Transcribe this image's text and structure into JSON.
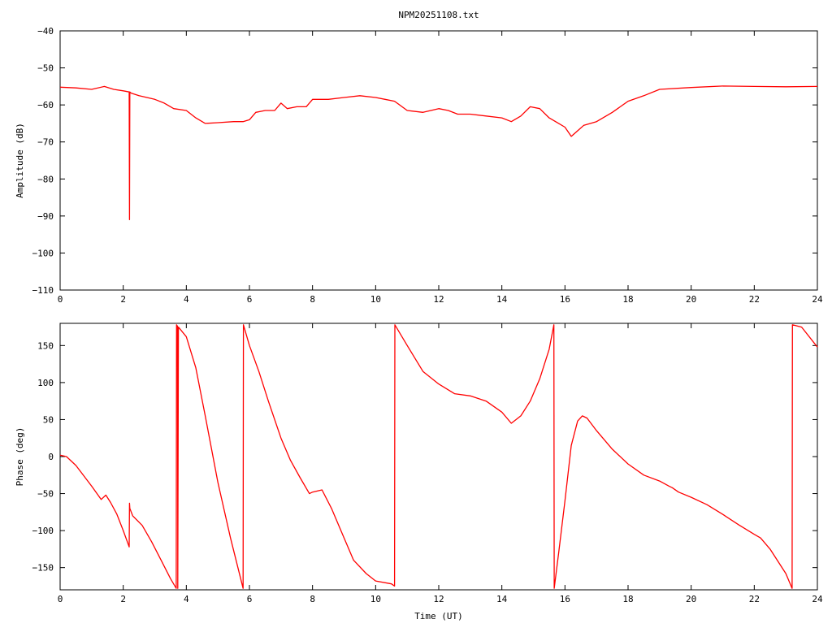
{
  "chart_data": [
    {
      "type": "line",
      "title": "NPM20251108.txt",
      "xlabel": "",
      "ylabel": "Amplitude (dB)",
      "xlim": [
        0,
        24
      ],
      "ylim": [
        -110,
        -40
      ],
      "xticks": [
        0,
        2,
        4,
        6,
        8,
        10,
        12,
        14,
        16,
        18,
        20,
        22,
        24
      ],
      "yticks": [
        -40,
        -50,
        -60,
        -70,
        -80,
        -90,
        -100,
        -110
      ],
      "grid": false,
      "color": "#ff0000",
      "series": [
        {
          "x": [
            0,
            0.5,
            1.0,
            1.4,
            1.7,
            2.0,
            2.19,
            2.2,
            2.21,
            2.25,
            2.5,
            3.0,
            3.3,
            3.6,
            4.0,
            4.3,
            4.6,
            5.0,
            5.5,
            5.8,
            6.0,
            6.2,
            6.5,
            6.8,
            7.0,
            7.2,
            7.5,
            7.8,
            8.0,
            8.5,
            9.0,
            9.5,
            10.0,
            10.3,
            10.6,
            11.0,
            11.5,
            12.0,
            12.3,
            12.6,
            13.0,
            13.5,
            14.0,
            14.3,
            14.6,
            14.9,
            15.2,
            15.5,
            15.8,
            16.0,
            16.2,
            16.4,
            16.6,
            17.0,
            17.5,
            18.0,
            18.5,
            19.0,
            20.0,
            21.0,
            22.0,
            23.0,
            24.0
          ],
          "y": [
            -55.2,
            -55.4,
            -55.8,
            -55.0,
            -55.8,
            -56.2,
            -56.5,
            -91.0,
            -56.5,
            -56.8,
            -57.5,
            -58.5,
            -59.5,
            -61.0,
            -61.5,
            -63.5,
            -65.0,
            -64.8,
            -64.5,
            -64.5,
            -64.0,
            -62.0,
            -61.5,
            -61.5,
            -59.5,
            -61.0,
            -60.5,
            -60.5,
            -58.5,
            -58.5,
            -58.0,
            -57.5,
            -58.0,
            -58.5,
            -59.0,
            -61.5,
            -62.0,
            -61.0,
            -61.5,
            -62.5,
            -62.5,
            -63.0,
            -63.5,
            -64.5,
            -63.0,
            -60.5,
            -61.0,
            -63.5,
            -65.0,
            -66.0,
            -68.5,
            -67.0,
            -65.5,
            -64.5,
            -62.0,
            -59.0,
            -57.5,
            -55.8,
            -55.3,
            -54.9,
            -55.0,
            -55.1,
            -55.0
          ]
        }
      ]
    },
    {
      "type": "line",
      "title": "",
      "xlabel": "Time (UT)",
      "ylabel": "Phase (deg)",
      "xlim": [
        0,
        24
      ],
      "ylim": [
        -180,
        180
      ],
      "xticks": [
        0,
        2,
        4,
        6,
        8,
        10,
        12,
        14,
        16,
        18,
        20,
        22,
        24
      ],
      "yticks": [
        150,
        100,
        50,
        0,
        -50,
        -100,
        -150
      ],
      "grid": false,
      "color": "#ff0000",
      "series": [
        {
          "x": [
            0,
            0.2,
            0.5,
            1.0,
            1.3,
            1.45,
            1.6,
            1.8,
            2.0,
            2.19,
            2.2,
            2.21,
            2.3,
            2.6,
            2.9,
            3.2,
            3.5,
            3.68,
            3.69,
            3.72,
            3.73,
            3.75,
            4.0,
            4.3,
            4.6,
            5.0,
            5.4,
            5.8,
            5.81,
            6.0,
            6.3,
            6.6,
            7.0,
            7.3,
            7.6,
            7.9,
            8.0,
            8.3,
            8.6,
            9.0,
            9.3,
            9.7,
            10.0,
            10.5,
            10.6,
            10.61,
            11.0,
            11.5,
            12.0,
            12.5,
            13.0,
            13.5,
            14.0,
            14.3,
            14.6,
            14.9,
            15.2,
            15.5,
            15.65,
            15.66,
            15.8,
            16.0,
            16.2,
            16.4,
            16.55,
            16.7,
            17.0,
            17.5,
            18.0,
            18.5,
            19.0,
            19.3,
            19.4,
            19.6,
            20.0,
            20.5,
            21.0,
            21.5,
            22.0,
            22.2,
            22.5,
            23.0,
            23.2,
            23.21,
            23.5,
            24.0
          ],
          "y": [
            2,
            0,
            -12,
            -40,
            -58,
            -52,
            -62,
            -78,
            -100,
            -122,
            -63,
            -70,
            -80,
            -93,
            -115,
            -140,
            -165,
            -178,
            178,
            176,
            -178,
            175,
            162,
            120,
            55,
            -35,
            -110,
            -178,
            178,
            150,
            115,
            75,
            25,
            -5,
            -28,
            -50,
            -48,
            -45,
            -70,
            -110,
            -140,
            -158,
            -168,
            -172,
            -175,
            178,
            150,
            115,
            98,
            85,
            82,
            75,
            60,
            45,
            55,
            75,
            105,
            145,
            178,
            -178,
            -130,
            -60,
            15,
            48,
            55,
            52,
            35,
            10,
            -10,
            -25,
            -33,
            -40,
            -42,
            -48,
            -55,
            -65,
            -78,
            -92,
            -105,
            -110,
            -125,
            -158,
            -178,
            178,
            175,
            148
          ]
        }
      ]
    }
  ]
}
